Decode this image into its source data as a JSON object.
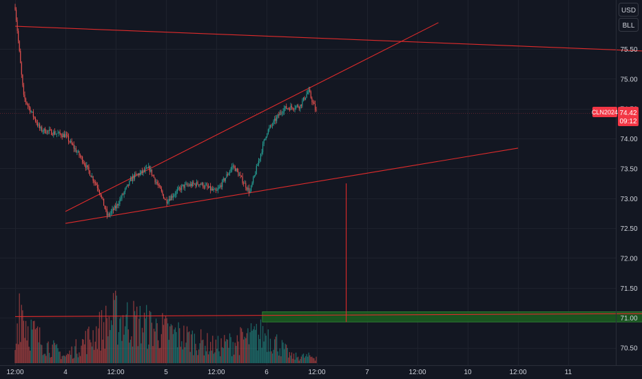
{
  "price_scale": {
    "currency": "USD",
    "unit": "BLL",
    "symbol_tag": "CLN2024",
    "last_price": "74.42",
    "countdown": "09:12",
    "ticks": [
      "75.50",
      "75.00",
      "74.50",
      "74.00",
      "73.50",
      "73.00",
      "72.50",
      "72.00",
      "71.50",
      "71.00",
      "70.50"
    ]
  },
  "time_scale": {
    "ticks": [
      "12:00",
      "4",
      "12:00",
      "5",
      "12:00",
      "6",
      "12:00",
      "7",
      "12:00",
      "10",
      "12:00",
      "11"
    ]
  },
  "colors": {
    "background": "#131722",
    "grid": "#1e222d",
    "up": "#26a69a",
    "down": "#ef5350",
    "volume_up": "#26a69a",
    "volume_down": "#ef5350",
    "drawing": "#e02b2b",
    "zone_fill": "#1b5e20",
    "zone_stroke": "#2e7d32",
    "tag": "#f23645"
  },
  "chart_data": {
    "type": "candlestick",
    "symbol": "CLN2024",
    "currency": "USD",
    "unit": "BLL",
    "last_price": 74.42,
    "y_range": [
      70.4,
      75.95
    ],
    "x_ticks": [
      "12:00",
      "4",
      "12:00",
      "5",
      "12:00",
      "6",
      "12:00",
      "7",
      "12:00",
      "10",
      "12:00",
      "11"
    ],
    "price_path": [
      {
        "t": "3 12:00",
        "price": 76.2
      },
      {
        "t": "3 14:00",
        "price": 74.7
      },
      {
        "t": "3 18:00",
        "price": 74.15
      },
      {
        "t": "4 00:00",
        "price": 74.05
      },
      {
        "t": "4 04:00",
        "price": 73.65
      },
      {
        "t": "4 08:00",
        "price": 73.15
      },
      {
        "t": "4 10:00",
        "price": 72.7
      },
      {
        "t": "4 12:00",
        "price": 72.85
      },
      {
        "t": "4 16:00",
        "price": 73.35
      },
      {
        "t": "4 20:00",
        "price": 73.5
      },
      {
        "t": "5 00:00",
        "price": 72.95
      },
      {
        "t": "5 04:00",
        "price": 73.2
      },
      {
        "t": "5 08:00",
        "price": 73.25
      },
      {
        "t": "5 12:00",
        "price": 73.1
      },
      {
        "t": "5 16:00",
        "price": 73.55
      },
      {
        "t": "5 20:00",
        "price": 73.1
      },
      {
        "t": "5 22:00",
        "price": 73.6
      },
      {
        "t": "6 00:00",
        "price": 74.1
      },
      {
        "t": "6 04:00",
        "price": 74.5
      },
      {
        "t": "6 08:00",
        "price": 74.55
      },
      {
        "t": "6 10:00",
        "price": 74.8
      },
      {
        "t": "6 12:00",
        "price": 74.42
      }
    ],
    "volume": [
      {
        "t": "3 12:00",
        "level": 0.15
      },
      {
        "t": "3 13:00",
        "level": 1.0
      },
      {
        "t": "3 15:00",
        "level": 0.55
      },
      {
        "t": "3 18:00",
        "level": 0.35
      },
      {
        "t": "4 00:00",
        "level": 0.1
      },
      {
        "t": "4 12:00",
        "level": 0.7
      },
      {
        "t": "5 12:00",
        "level": 0.25
      },
      {
        "t": "6 00:00",
        "level": 0.45
      },
      {
        "t": "6 06:00",
        "level": 0.1
      }
    ],
    "trendlines": [
      {
        "from": {
          "t": "3 12:00",
          "price": 75.88
        },
        "to": {
          "t": "11 20:00",
          "price": 75.46
        }
      },
      {
        "from": {
          "t": "4 00:00",
          "price": 72.78
        },
        "to": {
          "t": "7 17:00",
          "price": 75.94
        }
      },
      {
        "from": {
          "t": "4 00:00",
          "price": 72.58
        },
        "to": {
          "t": "10 12:00",
          "price": 73.84
        }
      },
      {
        "from": {
          "t": "3 12:00",
          "price": 71.02
        },
        "to": {
          "t": "11 20:00",
          "price": 71.07
        }
      },
      {
        "from": {
          "t": "6 19:00",
          "price": 73.25
        },
        "to": {
          "t": "6 19:00",
          "price": 70.93
        }
      }
    ],
    "zones": [
      {
        "from": "5 23:00",
        "to": "11 20:00",
        "top": 71.1,
        "bottom": 70.93
      }
    ],
    "grid": true
  }
}
